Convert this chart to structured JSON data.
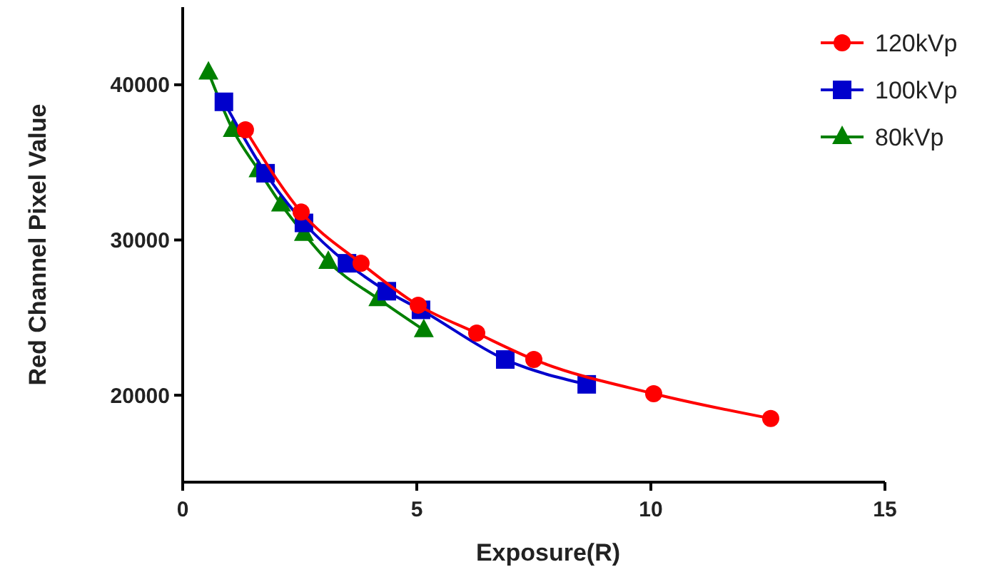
{
  "chart_data": {
    "type": "line",
    "xlabel": "Exposure(R)",
    "ylabel": "Red Channel  Pixel  Value",
    "xlim": [
      0,
      15
    ],
    "ylim": [
      14400,
      45000
    ],
    "xticks": [
      0,
      5,
      10,
      15
    ],
    "yticks": [
      20000,
      30000,
      40000
    ],
    "legend": "top right",
    "series": [
      {
        "name": "120kVp",
        "color": "#ff0000",
        "marker": "circle",
        "x": [
          1.34,
          2.53,
          3.81,
          5.03,
          6.28,
          7.5,
          10.06,
          12.56
        ],
        "values": [
          37100,
          31800,
          28500,
          25800,
          24000,
          22300,
          20100,
          18500
        ]
      },
      {
        "name": "100kVp",
        "color": "#0000cc",
        "marker": "square",
        "x": [
          0.88,
          1.77,
          2.59,
          3.51,
          4.36,
          5.09,
          6.89,
          8.63
        ],
        "values": [
          38900,
          34300,
          31100,
          28500,
          26700,
          25500,
          22300,
          20700
        ]
      },
      {
        "name": "80kVp",
        "color": "#008000",
        "marker": "triangle",
        "x": [
          0.55,
          1.07,
          1.62,
          2.1,
          2.59,
          3.11,
          4.18,
          5.15
        ],
        "values": [
          40800,
          37100,
          34500,
          32300,
          30400,
          28600,
          26200,
          24200
        ]
      }
    ]
  }
}
